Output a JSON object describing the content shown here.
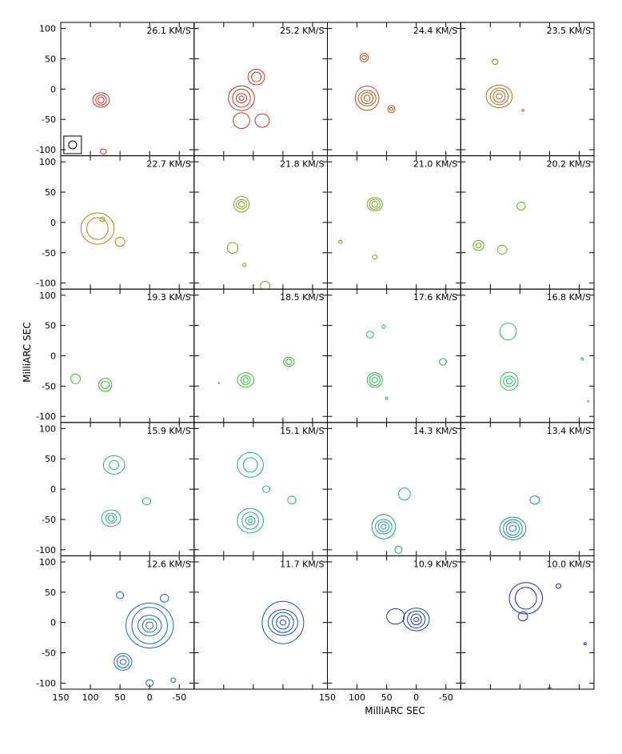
{
  "chart_data": {
    "type": "contour-grid",
    "title": "",
    "xlabel": "MilliARC SEC",
    "ylabel": "MilliARC SEC",
    "xlim": [
      150,
      -75
    ],
    "ylim": [
      -110,
      110
    ],
    "x_ticks": [
      150,
      100,
      50,
      0,
      -50
    ],
    "y_ticks": [
      100,
      50,
      0,
      -50,
      -100
    ],
    "x_tick_labels": [
      "150",
      "100",
      "50",
      "0",
      "-50"
    ],
    "y_tick_labels": [
      "100",
      "50",
      "0",
      "-50",
      "-100"
    ],
    "beam": {
      "panel": 0,
      "x": 130,
      "y": -92
    },
    "grid": {
      "rows": 5,
      "cols": 4
    },
    "panels": [
      {
        "label": "26.1 KM/S",
        "color": "#c0392b",
        "contours": [
          {
            "x": 82,
            "y": -18,
            "rx": [
              14,
              9,
              5
            ]
          },
          {
            "x": 78,
            "y": -103,
            "rx": [
              5
            ]
          }
        ]
      },
      {
        "label": "25.2 KM/S",
        "color": "#c0392b",
        "contours": [
          {
            "x": 70,
            "y": -15,
            "rx": [
              22,
              15,
              9,
              4
            ]
          },
          {
            "x": 45,
            "y": 20,
            "rx": [
              14,
              8
            ]
          },
          {
            "x": 70,
            "y": -52,
            "rx": [
              14
            ]
          },
          {
            "x": 35,
            "y": -52,
            "rx": [
              12
            ]
          }
        ]
      },
      {
        "label": "24.4 KM/S",
        "color": "#b5541d",
        "contours": [
          {
            "x": 83,
            "y": -15,
            "rx": [
              20,
              15,
              10,
              5
            ]
          },
          {
            "x": 88,
            "y": 52,
            "rx": [
              7,
              4
            ]
          },
          {
            "x": 42,
            "y": -33,
            "rx": [
              6,
              3
            ]
          }
        ]
      },
      {
        "label": "23.5 KM/S",
        "color": "#b06a1a",
        "contours": [
          {
            "x": 85,
            "y": -12,
            "rx": [
              22,
              15,
              10,
              5
            ]
          },
          {
            "x": 92,
            "y": 45,
            "rx": [
              5
            ]
          },
          {
            "x": 45,
            "y": -35,
            "rx": [
              2
            ]
          }
        ]
      },
      {
        "label": "22.7 KM/S",
        "color": "#a58a1e",
        "contours": [
          {
            "x": 88,
            "y": -10,
            "rx": [
              28,
              18
            ]
          },
          {
            "x": 80,
            "y": 5,
            "rx": [
              4
            ]
          },
          {
            "x": 50,
            "y": -32,
            "rx": [
              8
            ]
          }
        ]
      },
      {
        "label": "21.8 KM/S",
        "color": "#8f9a1e",
        "contours": [
          {
            "x": 70,
            "y": 30,
            "rx": [
              13,
              9,
              5
            ]
          },
          {
            "x": 85,
            "y": -42,
            "rx": [
              9
            ]
          },
          {
            "x": 65,
            "y": -70,
            "rx": [
              3
            ]
          },
          {
            "x": 30,
            "y": -105,
            "rx": [
              8
            ]
          }
        ]
      },
      {
        "label": "21.0 KM/S",
        "color": "#7aa41e",
        "contours": [
          {
            "x": 70,
            "y": 30,
            "rx": [
              13,
              9,
              5
            ]
          },
          {
            "x": 128,
            "y": -32,
            "rx": [
              3
            ]
          },
          {
            "x": 70,
            "y": -57,
            "rx": [
              4
            ]
          }
        ]
      },
      {
        "label": "20.2 KM/S",
        "color": "#62ad22",
        "contours": [
          {
            "x": 48,
            "y": 27,
            "rx": [
              7
            ]
          },
          {
            "x": 120,
            "y": -38,
            "rx": [
              9,
              4
            ]
          },
          {
            "x": 80,
            "y": -45,
            "rx": [
              8
            ]
          }
        ]
      },
      {
        "label": "19.3 KM/S",
        "color": "#45b52b",
        "contours": [
          {
            "x": 125,
            "y": -38,
            "rx": [
              8
            ]
          },
          {
            "x": 75,
            "y": -48,
            "rx": [
              11,
              7
            ]
          }
        ]
      },
      {
        "label": "18.5 KM/S",
        "color": "#3bb53b",
        "contours": [
          {
            "x": 63,
            "y": -40,
            "rx": [
              14,
              8,
              4
            ]
          },
          {
            "x": 108,
            "y": -45,
            "rx": [
              1
            ]
          },
          {
            "x": -10,
            "y": -10,
            "rx": [
              9,
              5
            ]
          }
        ]
      },
      {
        "label": "17.6 KM/S",
        "color": "#35b550",
        "contours": [
          {
            "x": 70,
            "y": -40,
            "rx": [
              13,
              9,
              5
            ]
          },
          {
            "x": 78,
            "y": 35,
            "rx": [
              6
            ]
          },
          {
            "x": 55,
            "y": 48,
            "rx": [
              3
            ]
          },
          {
            "x": -45,
            "y": -10,
            "rx": [
              6
            ]
          },
          {
            "x": 50,
            "y": -70,
            "rx": [
              2
            ]
          }
        ]
      },
      {
        "label": "16.8 KM/S",
        "color": "#33b25f",
        "contours": [
          {
            "x": 70,
            "y": 40,
            "rx": [
              14
            ]
          },
          {
            "x": 68,
            "y": -42,
            "rx": [
              15,
              10,
              5
            ]
          },
          {
            "x": -55,
            "y": -5,
            "rx": [
              2
            ]
          },
          {
            "x": -65,
            "y": -75,
            "rx": [
              1
            ]
          }
        ]
      },
      {
        "label": "15.9 KM/S",
        "color": "#2fae78",
        "contours": [
          {
            "x": 60,
            "y": 40,
            "rx": [
              18,
              8
            ]
          },
          {
            "x": 65,
            "y": -48,
            "rx": [
              16,
              9,
              5
            ]
          },
          {
            "x": 5,
            "y": -20,
            "rx": [
              7
            ]
          }
        ]
      },
      {
        "label": "15.1 KM/S",
        "color": "#2aa890",
        "contours": [
          {
            "x": 55,
            "y": 40,
            "rx": [
              22,
              12
            ]
          },
          {
            "x": 55,
            "y": -52,
            "rx": [
              22,
              14,
              8,
              3
            ]
          },
          {
            "x": 28,
            "y": 0,
            "rx": [
              6
            ]
          },
          {
            "x": -15,
            "y": -18,
            "rx": [
              7
            ]
          }
        ]
      },
      {
        "label": "14.3 KM/S",
        "color": "#219e9a",
        "contours": [
          {
            "x": 55,
            "y": -62,
            "rx": [
              20,
              14,
              9,
              4
            ]
          },
          {
            "x": 20,
            "y": -8,
            "rx": [
              10
            ]
          },
          {
            "x": 30,
            "y": -100,
            "rx": [
              6
            ]
          }
        ]
      },
      {
        "label": "13.4 KM/S",
        "color": "#1d8aa0",
        "contours": [
          {
            "x": 62,
            "y": -65,
            "rx": [
              22,
              16,
              11,
              6
            ]
          },
          {
            "x": 25,
            "y": -18,
            "rx": [
              8
            ]
          }
        ]
      },
      {
        "label": "12.6 KM/S",
        "color": "#1e6aa8",
        "contours": [
          {
            "x": 0,
            "y": -5,
            "rx": [
              40,
              30,
              20,
              12,
              6
            ]
          },
          {
            "x": 45,
            "y": -65,
            "rx": [
              15,
              10,
              5
            ]
          },
          {
            "x": -25,
            "y": 40,
            "rx": [
              7
            ]
          },
          {
            "x": 50,
            "y": 45,
            "rx": [
              6
            ]
          },
          {
            "x": 0,
            "y": -100,
            "rx": [
              6
            ]
          },
          {
            "x": -40,
            "y": -95,
            "rx": [
              4
            ]
          }
        ]
      },
      {
        "label": "11.7 KM/S",
        "color": "#1a4fae",
        "contours": [
          {
            "x": 0,
            "y": 0,
            "rx": [
              35,
              25,
              18,
              11,
              5
            ]
          }
        ]
      },
      {
        "label": "10.9 KM/S",
        "color": "#1a3aa8",
        "contours": [
          {
            "x": 0,
            "y": 5,
            "rx": [
              22,
              15,
              9,
              4
            ]
          },
          {
            "x": 35,
            "y": 10,
            "rx": [
              15
            ]
          }
        ]
      },
      {
        "label": "10.0 KM/S",
        "color": "#1f2aa0",
        "contours": [
          {
            "x": 40,
            "y": 40,
            "rx": [
              28,
              18
            ]
          },
          {
            "x": 45,
            "y": 10,
            "rx": [
              8
            ]
          },
          {
            "x": -15,
            "y": 60,
            "rx": [
              4
            ]
          },
          {
            "x": -60,
            "y": -35,
            "rx": [
              2
            ]
          },
          {
            "x": 0,
            "y": -110,
            "rx": [
              3
            ]
          }
        ]
      }
    ]
  }
}
